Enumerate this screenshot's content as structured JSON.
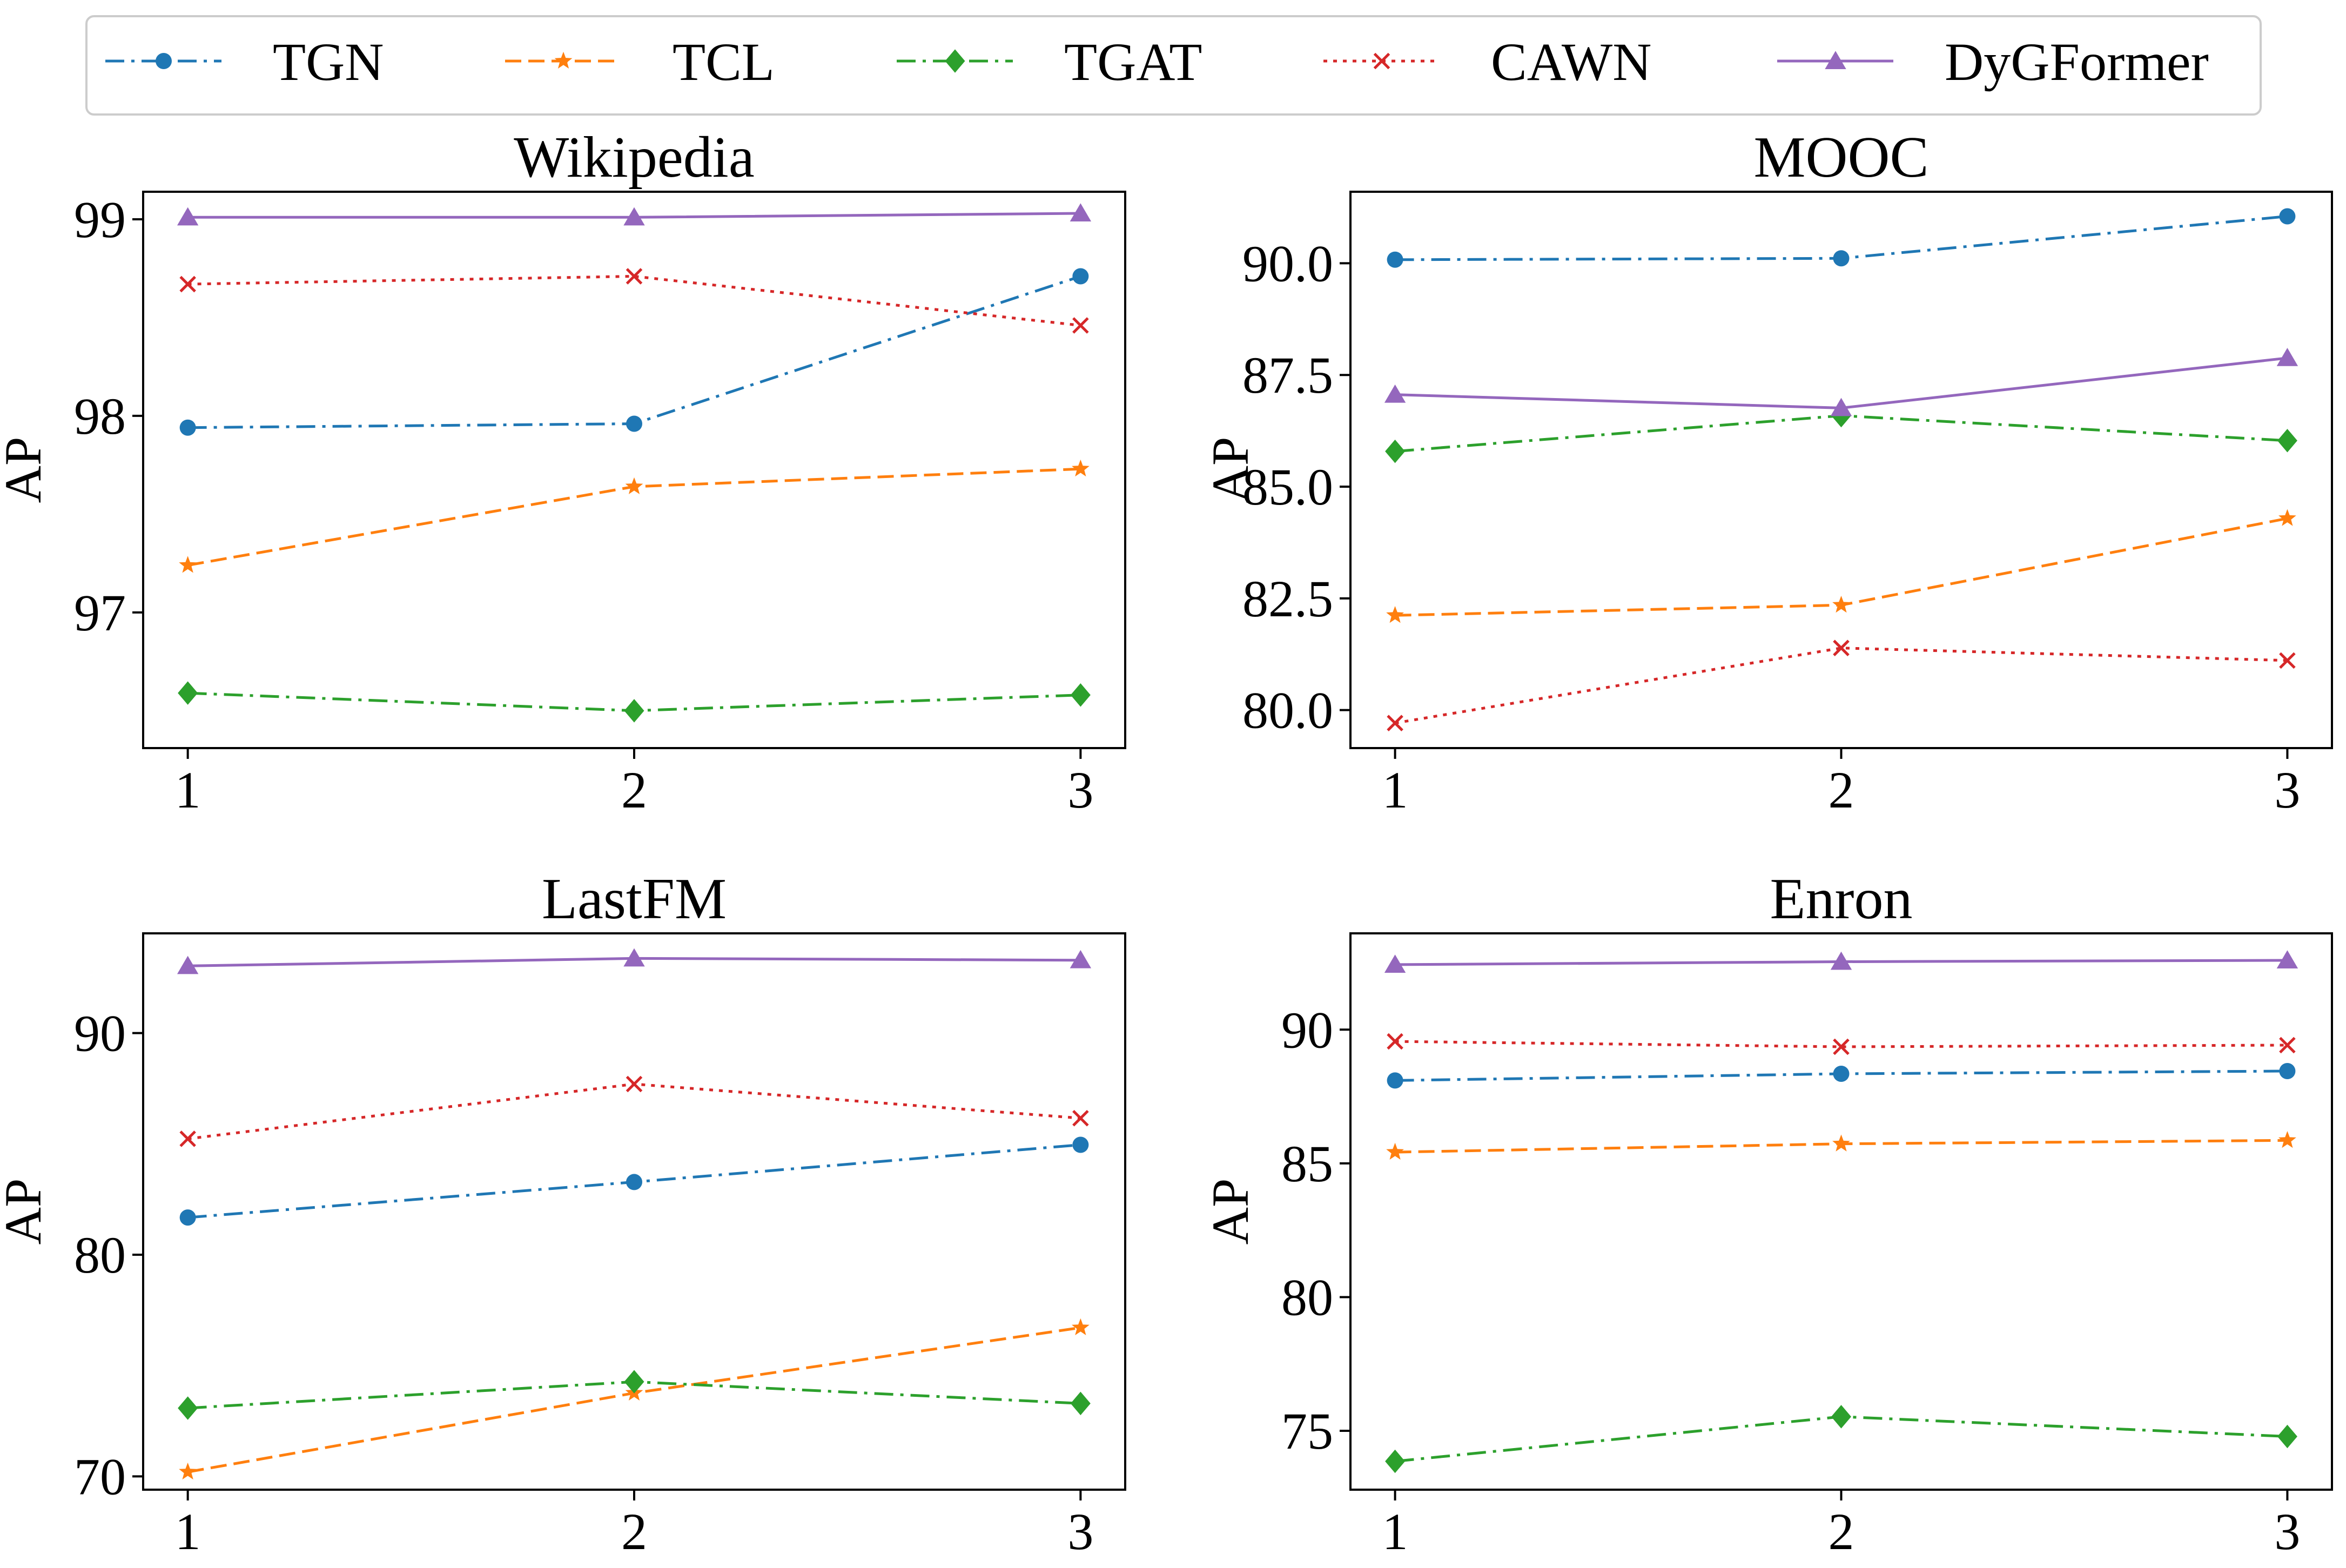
{
  "legend": [
    {
      "name": "TGN",
      "color": "#1f77b4",
      "marker": "circle",
      "dash": "dashdot"
    },
    {
      "name": "TCL",
      "color": "#ff7f0e",
      "marker": "star",
      "dash": "dashed"
    },
    {
      "name": "TGAT",
      "color": "#2ca02c",
      "marker": "diamond",
      "dash": "dashdot"
    },
    {
      "name": "CAWN",
      "color": "#d62728",
      "marker": "x",
      "dash": "dotted"
    },
    {
      "name": "DyGFormer",
      "color": "#9467bd",
      "marker": "triangle",
      "dash": "solid"
    }
  ],
  "chart_data": [
    {
      "type": "line",
      "title": "Wikipedia",
      "xlabel": "",
      "ylabel": "AP",
      "x": [
        1,
        2,
        3
      ],
      "xticks": [
        "1",
        "2",
        "3"
      ],
      "ylim": [
        96.31,
        99.14
      ],
      "yticks": [
        97,
        98,
        99
      ],
      "ytick_labels": [
        "97",
        "98",
        "99"
      ],
      "series": [
        {
          "name": "TGN",
          "values": [
            97.94,
            97.96,
            98.71
          ]
        },
        {
          "name": "TCL",
          "values": [
            97.24,
            97.64,
            97.73
          ]
        },
        {
          "name": "TGAT",
          "values": [
            96.59,
            96.5,
            96.58
          ]
        },
        {
          "name": "CAWN",
          "values": [
            98.67,
            98.71,
            98.46
          ]
        },
        {
          "name": "DyGFormer",
          "values": [
            99.01,
            99.01,
            99.03
          ]
        }
      ]
    },
    {
      "type": "line",
      "title": "MOOC",
      "xlabel": "",
      "ylabel": "AP",
      "x": [
        1,
        2,
        3
      ],
      "xticks": [
        "1",
        "2",
        "3"
      ],
      "ylim": [
        79.15,
        91.6
      ],
      "yticks": [
        80.0,
        82.5,
        85.0,
        87.5,
        90.0
      ],
      "ytick_labels": [
        "80.0",
        "82.5",
        "85.0",
        "87.5",
        "90.0"
      ],
      "series": [
        {
          "name": "TGN",
          "values": [
            90.08,
            90.11,
            91.05
          ]
        },
        {
          "name": "TCL",
          "values": [
            82.12,
            82.35,
            84.29
          ]
        },
        {
          "name": "TGAT",
          "values": [
            85.79,
            86.59,
            86.03
          ]
        },
        {
          "name": "CAWN",
          "values": [
            79.71,
            81.39,
            81.11
          ]
        },
        {
          "name": "DyGFormer",
          "values": [
            87.06,
            86.76,
            87.88
          ]
        }
      ]
    },
    {
      "type": "line",
      "title": "LastFM",
      "xlabel": "",
      "ylabel": "AP",
      "x": [
        1,
        2,
        3
      ],
      "xticks": [
        "1",
        "2",
        "3"
      ],
      "ylim": [
        69.4,
        94.5
      ],
      "yticks": [
        70,
        80,
        90
      ],
      "ytick_labels": [
        "70",
        "80",
        "90"
      ],
      "series": [
        {
          "name": "TGN",
          "values": [
            81.68,
            83.28,
            84.96
          ]
        },
        {
          "name": "TCL",
          "values": [
            70.2,
            73.76,
            76.71
          ]
        },
        {
          "name": "TGAT",
          "values": [
            73.08,
            74.27,
            73.29
          ]
        },
        {
          "name": "CAWN",
          "values": [
            85.23,
            87.7,
            86.16
          ]
        },
        {
          "name": "DyGFormer",
          "values": [
            93.03,
            93.37,
            93.29
          ]
        }
      ]
    },
    {
      "type": "line",
      "title": "Enron",
      "xlabel": "",
      "ylabel": "AP",
      "x": [
        1,
        2,
        3
      ],
      "xticks": [
        "1",
        "2",
        "3"
      ],
      "ylim": [
        72.8,
        93.6
      ],
      "yticks": [
        75,
        80,
        85,
        90
      ],
      "ytick_labels": [
        "75",
        "80",
        "85",
        "90"
      ],
      "series": [
        {
          "name": "TGN",
          "values": [
            88.1,
            88.35,
            88.45
          ]
        },
        {
          "name": "TCL",
          "values": [
            85.42,
            85.73,
            85.86
          ]
        },
        {
          "name": "TGAT",
          "values": [
            73.86,
            75.53,
            74.79
          ]
        },
        {
          "name": "CAWN",
          "values": [
            89.56,
            89.36,
            89.42
          ]
        },
        {
          "name": "DyGFormer",
          "values": [
            92.43,
            92.54,
            92.59
          ]
        }
      ]
    }
  ]
}
